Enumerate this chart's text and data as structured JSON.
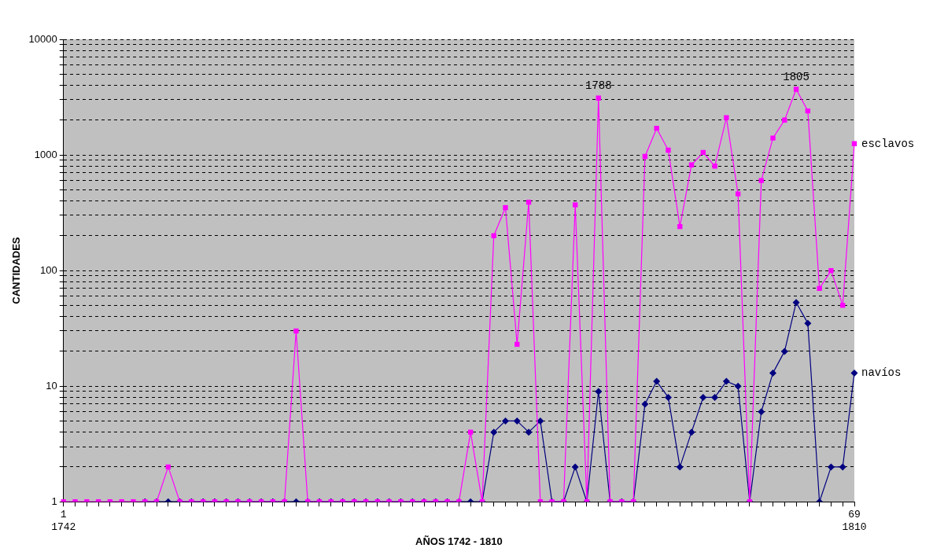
{
  "chart_data": {
    "type": "line",
    "xlabel": "AÑOS 1742 - 1810",
    "ylabel": "CANTIDADES",
    "categories": [
      "1\n1742",
      null,
      null,
      null,
      null,
      null,
      null,
      null,
      null,
      null,
      null,
      null,
      null,
      null,
      null,
      null,
      null,
      null,
      null,
      null,
      null,
      null,
      null,
      null,
      null,
      null,
      null,
      null,
      null,
      null,
      null,
      null,
      null,
      null,
      null,
      null,
      null,
      null,
      null,
      null,
      null,
      null,
      null,
      null,
      null,
      null,
      null,
      null,
      null,
      null,
      null,
      null,
      null,
      null,
      null,
      null,
      null,
      null,
      null,
      null,
      null,
      null,
      null,
      null,
      null,
      null,
      null,
      null,
      "69\n1810"
    ],
    "series": [
      {
        "name": "esclavos",
        "color": "#ff00ff",
        "marker": "square",
        "values": [
          1,
          1,
          1,
          1,
          1,
          1,
          1,
          1,
          1,
          2,
          1,
          1,
          1,
          1,
          1,
          1,
          1,
          1,
          1,
          1,
          30,
          1,
          1,
          1,
          1,
          1,
          1,
          1,
          1,
          1,
          1,
          1,
          1,
          1,
          1,
          4,
          1,
          200,
          350,
          23,
          390,
          1,
          1,
          1,
          370,
          1,
          3100,
          1,
          1,
          1,
          970,
          1700,
          1100,
          240,
          820,
          1050,
          800,
          2100,
          460,
          1,
          600,
          1400,
          2000,
          3700,
          2400,
          70,
          100,
          50,
          1250
        ]
      },
      {
        "name": "navíos",
        "color": "#000080",
        "marker": "diamond",
        "values": [
          null,
          null,
          null,
          null,
          null,
          null,
          null,
          1,
          1,
          1,
          1,
          1,
          1,
          1,
          1,
          1,
          1,
          1,
          1,
          1,
          1,
          1,
          1,
          1,
          1,
          1,
          1,
          1,
          1,
          1,
          1,
          1,
          1,
          1,
          1,
          1,
          1,
          4,
          5,
          5,
          4,
          5,
          1,
          1,
          2,
          1,
          9,
          1,
          1,
          1,
          7,
          11,
          8,
          2,
          4,
          8,
          8,
          11,
          10,
          1,
          6,
          13,
          20,
          53,
          35,
          1,
          2,
          2,
          13
        ]
      }
    ],
    "log": "y",
    "grid": "y",
    "legend": false,
    "ylim": [
      1,
      10000
    ],
    "yticks": [
      1,
      {
        "value": 2,
        "label": null
      },
      {
        "value": 3,
        "label": null
      },
      {
        "value": 4,
        "label": null
      },
      {
        "value": 5,
        "label": null
      },
      {
        "value": 6,
        "label": null
      },
      {
        "value": 7,
        "label": null
      },
      {
        "value": 8,
        "label": null
      },
      {
        "value": 9,
        "label": null
      },
      10,
      {
        "value": 20,
        "label": null
      },
      {
        "value": 30,
        "label": null
      },
      {
        "value": 40,
        "label": null
      },
      {
        "value": 50,
        "label": null
      },
      {
        "value": 60,
        "label": null
      },
      {
        "value": 70,
        "label": null
      },
      {
        "value": 80,
        "label": null
      },
      {
        "value": 90,
        "label": null
      },
      100,
      {
        "value": 200,
        "label": null
      },
      {
        "value": 300,
        "label": null
      },
      {
        "value": 400,
        "label": null
      },
      {
        "value": 500,
        "label": null
      },
      {
        "value": 600,
        "label": null
      },
      {
        "value": 700,
        "label": null
      },
      {
        "value": 800,
        "label": null
      },
      {
        "value": 900,
        "label": null
      },
      1000,
      {
        "value": 2000,
        "label": null
      },
      {
        "value": 3000,
        "label": null
      },
      {
        "value": 4000,
        "label": null
      },
      {
        "value": 5000,
        "label": null
      },
      {
        "value": 6000,
        "label": null
      },
      {
        "value": 7000,
        "label": null
      },
      {
        "value": 8000,
        "label": null
      },
      {
        "value": 9000,
        "label": null
      },
      10000
    ],
    "annotations": [
      {
        "text": "1788",
        "y": 3100
      },
      {
        "text": "1805",
        "y": 3700
      }
    ]
  }
}
